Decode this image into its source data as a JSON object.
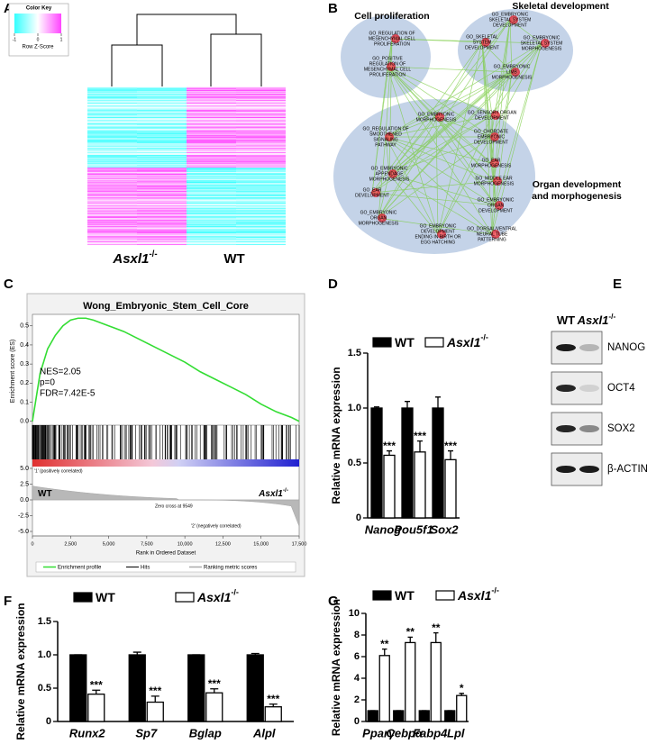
{
  "panel_labels": [
    "A",
    "B",
    "C",
    "D",
    "E",
    "F",
    "G"
  ],
  "heatmap": {
    "color_key_title": "Color Key",
    "color_key_ticks": [
      "-1",
      "0",
      "1"
    ],
    "color_key_label": "Row Z-Score",
    "column_labels": [
      {
        "name": "Asxl1",
        "name_sup": "-/-"
      },
      {
        "name": "WT"
      }
    ]
  },
  "network": {
    "clusters": [
      {
        "title": [
          "Cell proliferation"
        ]
      },
      {
        "title": [
          "Skeletal development"
        ]
      },
      {
        "title": [
          "Organ development",
          "and morphogenesis"
        ]
      }
    ],
    "nodes": [
      {
        "lines": [
          "GO_REGULATION OF",
          "MESENCHYMAL CELL",
          "PROLIFERATION"
        ]
      },
      {
        "lines": [
          "GO_POSITIVE",
          "REGULATION OF",
          "MESENCHYMAL CELL",
          "PROLIFERATION"
        ]
      },
      {
        "lines": [
          "GO_EMBRYONIC",
          "SKELETAL SYSTEM",
          "DEVELOPMENT"
        ]
      },
      {
        "lines": [
          "GO_SKELETAL",
          "SYSTEM",
          "DEVELOPMENT"
        ]
      },
      {
        "lines": [
          "GO_EMBRYONIC",
          "SKELETAL SYSTEM",
          "MORPHOGENESIS"
        ]
      },
      {
        "lines": [
          "GO_EMBRYONIC",
          "LIMB",
          "MORPHOGENESIS"
        ]
      },
      {
        "lines": [
          "GO_EMBRYONIC",
          "MORPHOGENESIS"
        ]
      },
      {
        "lines": [
          "GO_SENSORY ORGAN",
          "DEVELOPMENT"
        ]
      },
      {
        "lines": [
          "GO_REGULATION OF",
          "SMOOTHENED",
          "SIGNALING",
          "PATHWAY"
        ]
      },
      {
        "lines": [
          "GO_CHORDATE",
          "EMBRYONIC",
          "DEVELOPMENT"
        ]
      },
      {
        "lines": [
          "GO_EMBRYONIC",
          "APPENDAGE",
          "MORPHOGENESIS"
        ]
      },
      {
        "lines": [
          "GO_EAR",
          "MORPHOGENESIS"
        ]
      },
      {
        "lines": [
          "GO_MIDDLE EAR",
          "MORPHOGENESIS"
        ]
      },
      {
        "lines": [
          "GO_EAR",
          "DEVELOPMENT"
        ]
      },
      {
        "lines": [
          "GO_EMBRYONIC",
          "ORGAN",
          "DEVELOPMENT"
        ]
      },
      {
        "lines": [
          "GO_EMBRYONIC",
          "ORGAN",
          "MORPHOGENESIS"
        ]
      },
      {
        "lines": [
          "GO_EMBRYONIC",
          "DEVELOPMENT",
          "ENDING IN BIRTH OR",
          "EGG HATCHING"
        ]
      },
      {
        "lines": [
          "GO_DORSAL/VENTRAL",
          "NEURAL TUBE",
          "PATTERNING"
        ]
      }
    ]
  },
  "western": {
    "columns": [
      {
        "name": "WT"
      },
      {
        "name": "Asxl1",
        "name_sup": "-/-"
      }
    ],
    "rows": [
      "NANOG",
      "OCT4",
      "SOX2",
      "β-ACTIN"
    ]
  },
  "chart_data": [
    {
      "type": "line",
      "title": "Wong_Embryonic_Stem_Cell_Core",
      "ylabel": "Enrichment score (ES)",
      "xlabel": "Rank in Ordered Dataset",
      "x": [
        0,
        500,
        1000,
        1500,
        2000,
        2500,
        3000,
        3500,
        4000,
        5000,
        6000,
        7000,
        8000,
        9000,
        10000,
        11000,
        12000,
        13000,
        14000,
        15000,
        16000,
        17000,
        17500
      ],
      "series": [
        {
          "name": "Enrichment profile",
          "color": "#33dd33",
          "values": [
            0,
            0.25,
            0.38,
            0.45,
            0.5,
            0.53,
            0.54,
            0.54,
            0.53,
            0.5,
            0.47,
            0.43,
            0.39,
            0.35,
            0.31,
            0.26,
            0.22,
            0.18,
            0.14,
            0.09,
            0.05,
            0.02,
            0
          ]
        }
      ],
      "legend_extra": [
        "Hits",
        "Ranking metric scores"
      ],
      "xlim": [
        0,
        17500
      ],
      "xticks": [
        0,
        {
          "value": 2500,
          "label": "2,500"
        },
        {
          "value": 5000,
          "label": "5,000"
        },
        {
          "value": 7500,
          "label": "7,500"
        },
        {
          "value": 10000,
          "label": "10,000"
        },
        {
          "value": 12500,
          "label": "12,500"
        },
        {
          "value": 15000,
          "label": "15,000"
        },
        {
          "value": 17500,
          "label": "17,500"
        }
      ],
      "ylim": [
        -0.02,
        0.56
      ],
      "yticks": [
        {
          "value": 0,
          "label": "0.0"
        },
        0.1,
        0.2,
        0.3,
        0.4,
        0.5
      ],
      "metric_ylim": [
        -5,
        5
      ],
      "metric_ticks": [
        {
          "value": 5,
          "label": "5.0"
        },
        2.5,
        {
          "value": 0,
          "label": "0.0"
        },
        -2.5,
        {
          "value": -5,
          "label": "-5.0"
        }
      ],
      "stats": [
        "NES=2.05",
        "p=0",
        "FDR=7.42E-5"
      ],
      "positive_label": "'1' (positively correlated)",
      "negative_label": "'2' (negatively correlated)",
      "zero_cross": "Zero cross at 9549",
      "left_label": {
        "name": "WT"
      },
      "right_label": {
        "name": "Asxl1",
        "name_sup": "-/-"
      }
    },
    {
      "type": "bar",
      "ylabel": "Relative mRNA expression",
      "categories": [
        "Nanog",
        "Pou5f1",
        "Sox2"
      ],
      "series": [
        {
          "name": "WT",
          "color": "#000000",
          "values": [
            1.0,
            1.0,
            1.0
          ],
          "errors": [
            0.01,
            0.06,
            0.1
          ]
        },
        {
          "name": "Asxl1",
          "name_sup": "-/-",
          "color": "#ffffff",
          "values": [
            0.57,
            0.6,
            0.53
          ],
          "errors": [
            0.04,
            0.1,
            0.08
          ],
          "annotations": [
            "***",
            "***",
            "***"
          ]
        }
      ],
      "ylim": [
        0,
        1.5
      ],
      "yticks": [
        0,
        0.5,
        {
          "value": 1,
          "label": "1.0"
        },
        1.5
      ]
    },
    {
      "type": "bar",
      "ylabel": "Relative mRNA expression",
      "categories": [
        "Runx2",
        "Sp7",
        "Bglap",
        "Alpl"
      ],
      "series": [
        {
          "name": "WT",
          "color": "#000000",
          "values": [
            1.0,
            1.0,
            1.0,
            1.0
          ],
          "errors": [
            0,
            0.04,
            0,
            0.02
          ]
        },
        {
          "name": "Asxl1",
          "name_sup": "-/-",
          "color": "#ffffff",
          "values": [
            0.41,
            0.29,
            0.43,
            0.22
          ],
          "errors": [
            0.06,
            0.09,
            0.06,
            0.04
          ],
          "annotations": [
            "***",
            "***",
            "***",
            "***"
          ]
        }
      ],
      "ylim": [
        0,
        1.5
      ],
      "yticks": [
        0,
        0.5,
        {
          "value": 1,
          "label": "1.0"
        },
        1.5
      ]
    },
    {
      "type": "bar",
      "ylabel": "Relative mRNA expression",
      "categories": [
        "Pparγ",
        "Cebpα",
        "Fabp4",
        "Lpl"
      ],
      "series": [
        {
          "name": "WT",
          "color": "#000000",
          "values": [
            1,
            1,
            1,
            1
          ],
          "errors": [
            0,
            0,
            0,
            0
          ]
        },
        {
          "name": "Asxl1",
          "name_sup": "-/-",
          "color": "#ffffff",
          "values": [
            6.1,
            7.3,
            7.3,
            2.4
          ],
          "errors": [
            0.6,
            0.5,
            0.9,
            0.2
          ],
          "annotations": [
            "**",
            "**",
            "**",
            "*"
          ]
        }
      ],
      "ylim": [
        0,
        10
      ],
      "yticks": [
        0,
        2,
        4,
        6,
        8,
        10
      ]
    }
  ]
}
